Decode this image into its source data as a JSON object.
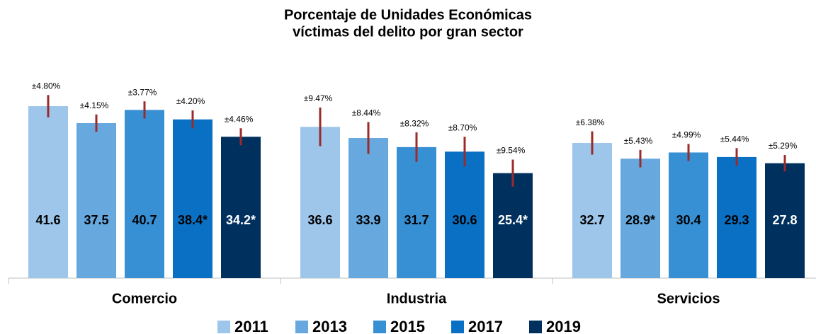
{
  "chart_data": {
    "type": "bar",
    "title": [
      "Porcentaje de Unidades Económicas",
      "víctimas del delito por gran sector"
    ],
    "categories": [
      "Comercio",
      "Industria",
      "Servicios"
    ],
    "ylim": [
      0,
      45
    ],
    "error_color": "#9b2b2b",
    "series": [
      {
        "name": "2011",
        "color": "#9dc6ea",
        "label_color": "#000000",
        "values": [
          41.6,
          36.6,
          32.7
        ],
        "value_labels": [
          "41.6",
          "36.6",
          "32.7"
        ],
        "errors": [
          4.8,
          9.47,
          6.38
        ],
        "error_labels": [
          "±4.80%",
          "±9.47%",
          "±6.38%"
        ]
      },
      {
        "name": "2013",
        "color": "#67a9de",
        "label_color": "#000000",
        "values": [
          37.5,
          33.9,
          28.9
        ],
        "value_labels": [
          "37.5",
          "33.9",
          "28.9*"
        ],
        "errors": [
          4.15,
          8.44,
          5.43
        ],
        "error_labels": [
          "±4.15%",
          "±8.44%",
          "±5.43%"
        ]
      },
      {
        "name": "2015",
        "color": "#3890d4",
        "label_color": "#000000",
        "values": [
          40.7,
          31.7,
          30.4
        ],
        "value_labels": [
          "40.7",
          "31.7",
          "30.4"
        ],
        "errors": [
          3.77,
          8.32,
          4.99
        ],
        "error_labels": [
          "±3.77%",
          "±8.32%",
          "±4.99%"
        ]
      },
      {
        "name": "2017",
        "color": "#0a70c4",
        "label_color": "#000000",
        "values": [
          38.4,
          30.6,
          29.3
        ],
        "value_labels": [
          "38.4*",
          "30.6",
          "29.3"
        ],
        "errors": [
          4.2,
          8.7,
          5.44
        ],
        "error_labels": [
          "±4.20%",
          "±8.70%",
          "±5.44%"
        ]
      },
      {
        "name": "2019",
        "color": "#00305e",
        "label_color": "#ffffff",
        "values": [
          34.2,
          25.4,
          27.8
        ],
        "value_labels": [
          "34.2*",
          "25.4*",
          "27.8"
        ],
        "errors": [
          4.46,
          9.54,
          5.29
        ],
        "error_labels": [
          "±4.46%",
          "±9.54%",
          "±5.29%"
        ]
      }
    ]
  }
}
